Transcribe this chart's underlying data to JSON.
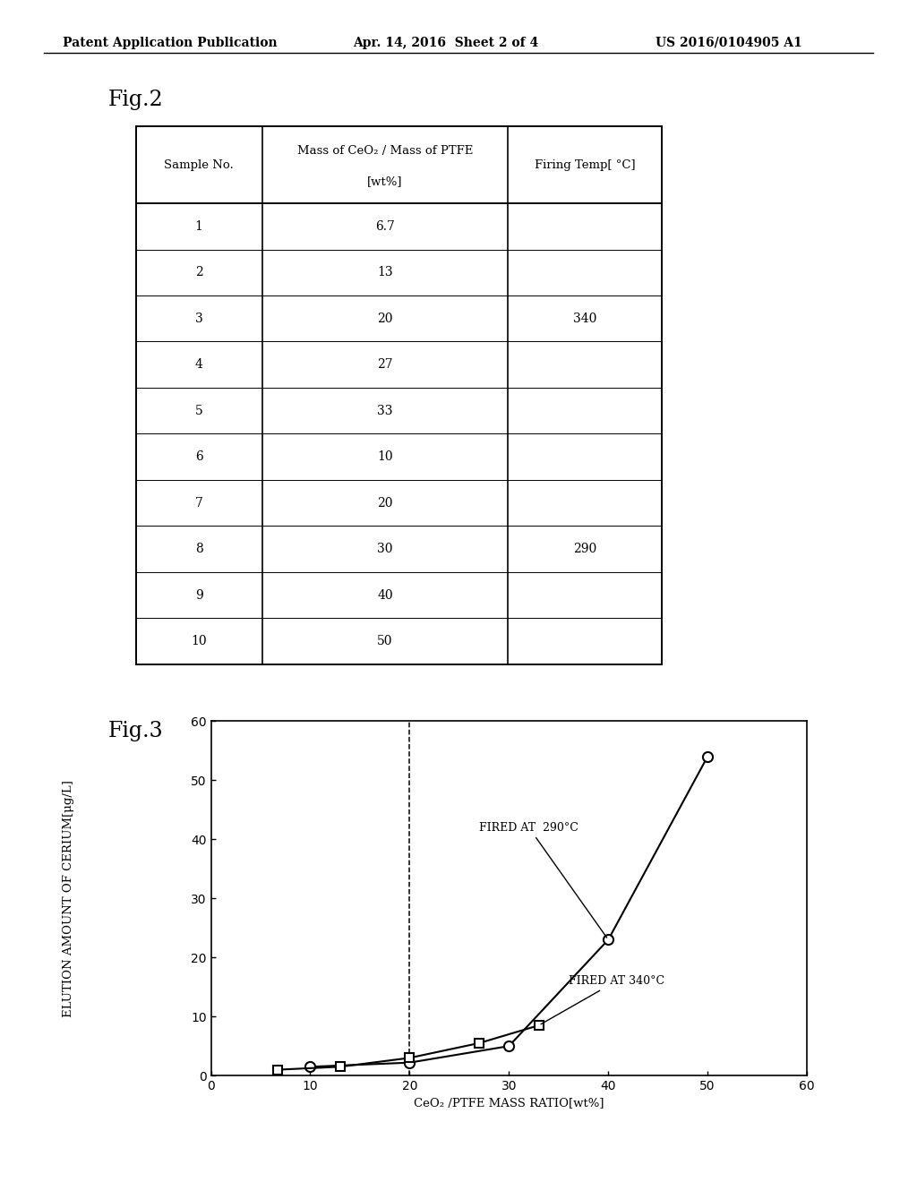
{
  "header_left": "Patent Application Publication",
  "header_mid": "Apr. 14, 2016  Sheet 2 of 4",
  "header_right": "US 2016/0104905 A1",
  "fig2_title": "Fig.2",
  "fig3_title": "Fig.3",
  "table_col1_header": "Sample No.",
  "table_col2_header_line1": "Mass of CeO₂ / Mass of PTFE",
  "table_col2_header_line2": "[wt%]",
  "table_col3_header": "Firing Temp[ °C]",
  "sample_nos": [
    "1",
    "2",
    "3",
    "4",
    "5",
    "6",
    "7",
    "8",
    "9",
    "10"
  ],
  "mass_ratios": [
    "6.7",
    "13",
    "20",
    "27",
    "33",
    "10",
    "20",
    "30",
    "40",
    "50"
  ],
  "firing_temp_340_label": "340",
  "firing_temp_290_label": "290",
  "x290": [
    10,
    20,
    30,
    40,
    50
  ],
  "y290": [
    1.5,
    2.2,
    5.0,
    23.0,
    54.0
  ],
  "x340": [
    6.7,
    13,
    20,
    27,
    33
  ],
  "y340": [
    1.0,
    1.5,
    3.0,
    5.5,
    8.5
  ],
  "dashed_x": 20,
  "xlabel": "CeO₂ /PTFE MASS RATIO[wt%]",
  "ylabel": "ELUTION AMOUNT OF CERIUM[μg/L]",
  "xmin": 0,
  "xmax": 60,
  "ymin": 0,
  "ymax": 60,
  "xticks": [
    0,
    10,
    20,
    30,
    40,
    50,
    60
  ],
  "yticks": [
    0,
    10,
    20,
    30,
    40,
    50,
    60
  ],
  "label290": "FIRED AT  290°C",
  "label340": "FIRED AT 340°C",
  "bg_color": "#ffffff"
}
